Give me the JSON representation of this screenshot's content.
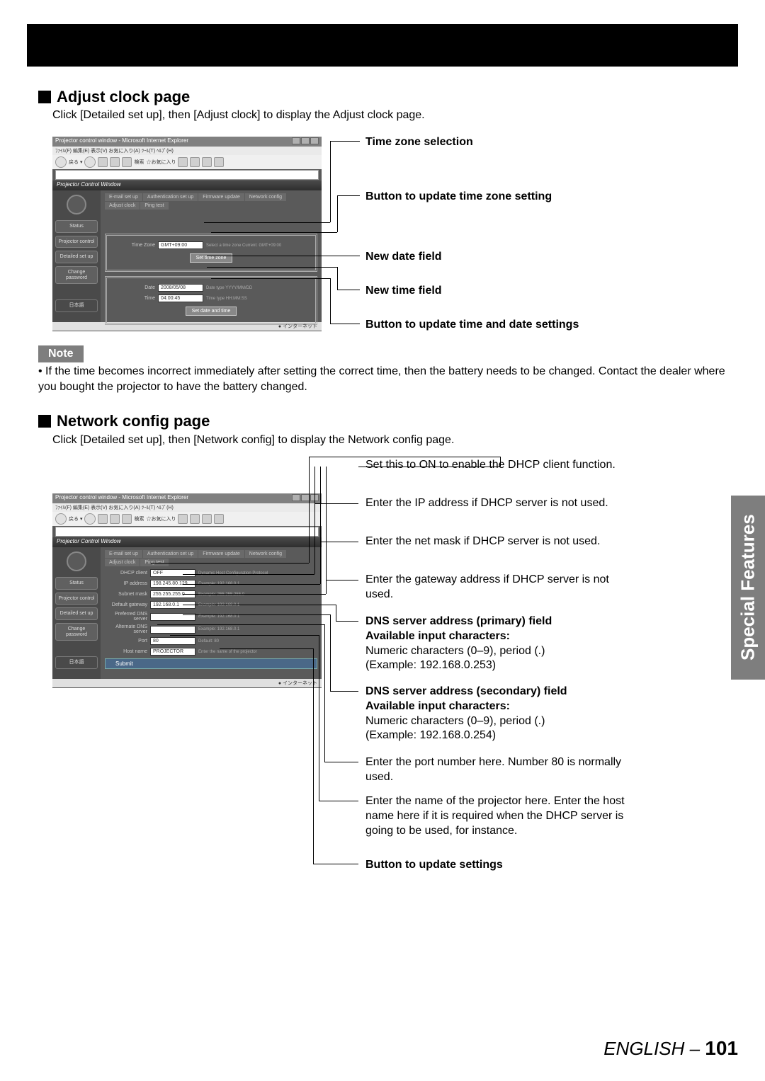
{
  "blackBar": true,
  "section1": {
    "title": "Adjust clock page",
    "body": "Click [Detailed set up], then [Adjust clock] to display the Adjust clock page."
  },
  "note": {
    "label": "Note",
    "text": "• If the time becomes incorrect immediately after setting the correct time, then the battery needs to be changed. Contact the dealer where you bought the projector to have the battery changed."
  },
  "section2": {
    "title": "Network config page",
    "body": "Click [Detailed set up], then [Network config] to display the Network config page."
  },
  "callouts1": {
    "c1": "Time zone selection",
    "c2": "Button to update time zone setting",
    "c3": "New date field",
    "c4": "New time field",
    "c5": "Button to update time and date settings"
  },
  "callouts2": {
    "c1": "Set this to ON to enable the DHCP client function.",
    "c2": "Enter the IP address if DHCP server is not used.",
    "c3": "Enter the net mask if DHCP server is not used.",
    "c4": "Enter the gateway address if DHCP server is not used.",
    "c5a": "DNS server address (primary) field",
    "c5b": "Available input characters:",
    "c5c": "Numeric characters (0–9), period (.)",
    "c5d": "(Example: 192.168.0.253)",
    "c6a": "DNS server address (secondary) field",
    "c6b": "Available input characters:",
    "c6c": "Numeric characters (0–9), period (.)",
    "c6d": "(Example: 192.168.0.254)",
    "c7": "Enter the port number here. Number 80 is normally used.",
    "c8": "Enter the name of the projector here. Enter the host name here if it is required when the DHCP server is going to be used, for instance.",
    "c9": "Button to update settings"
  },
  "sideTab": "Special Features",
  "footer": {
    "lang": "ENGLISH",
    "dash": " – ",
    "page": "101"
  },
  "mock": {
    "title": "Projector control window - Microsoft Internet Explorer",
    "menubar": "ﾌｧｲﾙ(F) 編集(E) 表示(V) お気に入り(A) ﾂｰﾙ(T) ﾍﾙﾌﾟ(H)",
    "header": "Projector Control Window",
    "tabs": [
      "E-mail set up",
      "Authentication set up",
      "Firmware update",
      "Network config",
      "Adjust clock",
      "Ping test"
    ],
    "sidebar": [
      "Status",
      "Projector control",
      "Detailed set up",
      "Change password",
      "日本語"
    ],
    "clock": {
      "tz_label": "Time Zone",
      "tz_value": "GMT+09:00",
      "tz_hint": "Select a time zone Current: GMT+09:00",
      "set_tz_btn": "Set time zone",
      "date_label": "Date",
      "date_value": "2008/05/08",
      "date_hint": "Date type YYYY/MM/DD",
      "time_label": "Time",
      "time_value": "04:00:45",
      "time_hint": "Time type HH:MM:SS",
      "set_dt_btn": "Set date and time"
    },
    "net": {
      "rows": [
        {
          "label": "DHCP client",
          "value": "OFF",
          "hint": "Dynamic Host Configuration Protocol"
        },
        {
          "label": "IP address",
          "value": "198.245.80.129",
          "hint": "Example: 192.168.0.1"
        },
        {
          "label": "Subnet mask",
          "value": "255.255.255.0",
          "hint": "Example: 255.255.255.0"
        },
        {
          "label": "Default gateway",
          "value": "192.168.0.1",
          "hint": "Example: 192.168.0.1"
        },
        {
          "label": "Preferred DNS server",
          "value": "",
          "hint": "Example: 192.168.0.1"
        },
        {
          "label": "Alternate DNS server",
          "value": "",
          "hint": "Example: 192.168.0.1"
        },
        {
          "label": "Port",
          "value": "80",
          "hint": "Default: 80"
        },
        {
          "label": "Host name",
          "value": "PROJECTOR",
          "hint": "Enter the name of the projector"
        }
      ],
      "submit": "Submit"
    },
    "status": "インターネット"
  }
}
